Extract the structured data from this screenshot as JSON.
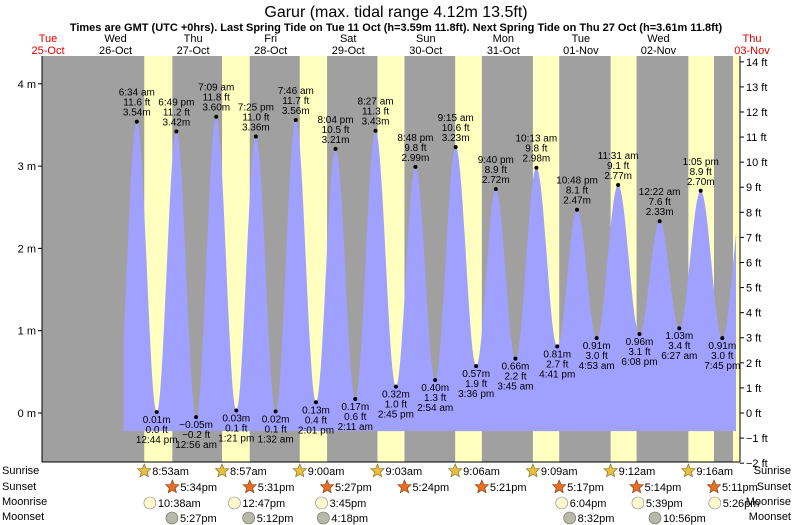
{
  "chart_data": {
    "type": "area",
    "title": "Garur (max. tidal range 4.12m 13.5ft)",
    "subtitle": "Times are GMT (UTC +0hrs). Last Spring Tide on Tue 11 Oct (h=3.59m 11.8ft). Next Spring Tide on Thu 27 Oct (h=3.61m 11.8ft)",
    "colors": {
      "tide": "#a0a0ff",
      "day": "#ffffc0",
      "night": "#a0a0a0",
      "heading": "#000000",
      "heading_red": "#e00000",
      "sun_fill": "#e8c040",
      "sunset_fill": "#e87020",
      "moon_rise": "#fffacd",
      "moon_set": "#b8b8a8"
    },
    "ylim_m": [
      -0.6,
      4.2
    ],
    "ylim_ft": [
      -2,
      14
    ],
    "x_start": "Tue 25-Oct 00:00",
    "days": [
      {
        "day": "Tue",
        "date": "25-Oct",
        "red": true
      },
      {
        "day": "Wed",
        "date": "26-Oct",
        "red": false
      },
      {
        "day": "Thu",
        "date": "27-Oct",
        "red": false
      },
      {
        "day": "Fri",
        "date": "28-Oct",
        "red": false
      },
      {
        "day": "Sat",
        "date": "29-Oct",
        "red": false
      },
      {
        "day": "Sun",
        "date": "30-Oct",
        "red": false
      },
      {
        "day": "Mon",
        "date": "31-Oct",
        "red": false
      },
      {
        "day": "Tue",
        "date": "01-Nov",
        "red": false
      },
      {
        "day": "Wed",
        "date": "02-Nov",
        "red": false
      },
      {
        "day": "Thu",
        "date": "03-Nov",
        "red": true
      }
    ],
    "m_ticks": [
      {
        "v": 0,
        "label": "0 m"
      },
      {
        "v": 1,
        "label": "1 m"
      },
      {
        "v": 2,
        "label": "2 m"
      },
      {
        "v": 3,
        "label": "3 m"
      },
      {
        "v": 4,
        "label": "4 m"
      }
    ],
    "ft_ticks": [
      {
        "v": -2,
        "label": "−2 ft"
      },
      {
        "v": -1,
        "label": "−1 ft"
      },
      {
        "v": 0,
        "label": "0 ft"
      },
      {
        "v": 1,
        "label": "1 ft"
      },
      {
        "v": 2,
        "label": "2 ft"
      },
      {
        "v": 3,
        "label": "3 ft"
      },
      {
        "v": 4,
        "label": "4 ft"
      },
      {
        "v": 5,
        "label": "5 ft"
      },
      {
        "v": 6,
        "label": "6 ft"
      },
      {
        "v": 7,
        "label": "7 ft"
      },
      {
        "v": 8,
        "label": "8 ft"
      },
      {
        "v": 9,
        "label": "9 ft"
      },
      {
        "v": 10,
        "label": "10 ft"
      },
      {
        "v": 11,
        "label": "11 ft"
      },
      {
        "v": 12,
        "label": "12 ft"
      },
      {
        "v": 13,
        "label": "13 ft"
      },
      {
        "v": 14,
        "label": "14 ft"
      }
    ],
    "daylight": [
      {
        "rise": "8:53am",
        "set": "5:34pm"
      },
      {
        "rise": "8:57am",
        "set": "5:31pm"
      },
      {
        "rise": "9:00am",
        "set": "5:27pm"
      },
      {
        "rise": "9:03am",
        "set": "5:24pm"
      },
      {
        "rise": "9:06am",
        "set": "5:21pm"
      },
      {
        "rise": "9:09am",
        "set": "5:17pm"
      },
      {
        "rise": "9:12am",
        "set": "5:14pm"
      },
      {
        "rise": "9:16am",
        "set": "5:11pm"
      }
    ],
    "series": [
      {
        "name": "High tides",
        "kind": "high",
        "points": [
          {
            "time": "6:34 am",
            "ft": "11.6 ft",
            "m": 3.54,
            "h": 30.57
          },
          {
            "time": "6:49 pm",
            "ft": "11.2 ft",
            "m": 3.42,
            "h": 42.82
          },
          {
            "time": "7:09 am",
            "ft": "11.8 ft",
            "m": 3.6,
            "h": 55.15
          },
          {
            "time": "7:25 pm",
            "ft": "11.0 ft",
            "m": 3.36,
            "h": 67.42
          },
          {
            "time": "7:46 am",
            "ft": "11.7 ft",
            "m": 3.56,
            "h": 79.77
          },
          {
            "time": "8:04 pm",
            "ft": "10.5 ft",
            "m": 3.21,
            "h": 92.07
          },
          {
            "time": "8:27 am",
            "ft": "11.3 ft",
            "m": 3.43,
            "h": 104.45
          },
          {
            "time": "8:48 pm",
            "ft": "9.8 ft",
            "m": 2.99,
            "h": 116.8
          },
          {
            "time": "9:15 am",
            "ft": "10.6 ft",
            "m": 3.23,
            "h": 129.25
          },
          {
            "time": "9:40 pm",
            "ft": "8.9 ft",
            "m": 2.72,
            "h": 141.67
          },
          {
            "time": "10:13 am",
            "ft": "9.8 ft",
            "m": 2.98,
            "h": 154.22
          },
          {
            "time": "10:48 pm",
            "ft": "8.1 ft",
            "m": 2.47,
            "h": 166.8
          },
          {
            "time": "11:31 am",
            "ft": "9.1 ft",
            "m": 2.77,
            "h": 179.52
          },
          {
            "time": "12:22 am",
            "ft": "7.6 ft",
            "m": 2.33,
            "h": 192.37
          },
          {
            "time": "1:05 pm",
            "ft": "8.9 ft",
            "m": 2.7,
            "h": 205.08
          }
        ]
      },
      {
        "name": "Low tides",
        "kind": "low",
        "points": [
          {
            "time": "12:44 pm",
            "ft": "0.0 ft",
            "m": 0.01,
            "h": 36.73
          },
          {
            "time": "12:56 am",
            "ft": "−0.2 ft",
            "m": -0.05,
            "h": 48.93
          },
          {
            "time": "1:21 pm",
            "ft": "0.1 ft",
            "m": 0.03,
            "h": 61.35
          },
          {
            "time": "1:32 am",
            "ft": "0.1 ft",
            "m": 0.02,
            "h": 73.53
          },
          {
            "time": "2:01 pm",
            "ft": "0.4 ft",
            "m": 0.13,
            "h": 86.02
          },
          {
            "time": "2:11 am",
            "ft": "0.6 ft",
            "m": 0.17,
            "h": 98.18
          },
          {
            "time": "2:45 pm",
            "ft": "1.0 ft",
            "m": 0.32,
            "h": 110.75
          },
          {
            "time": "2:54 am",
            "ft": "1.3 ft",
            "m": 0.4,
            "h": 122.9
          },
          {
            "time": "3:36 pm",
            "ft": "1.9 ft",
            "m": 0.57,
            "h": 135.6
          },
          {
            "time": "3:45 am",
            "ft": "2.2 ft",
            "m": 0.66,
            "h": 147.75
          },
          {
            "time": "4:41 pm",
            "ft": "2.7 ft",
            "m": 0.81,
            "h": 160.68
          },
          {
            "time": "4:53 am",
            "ft": "3.0 ft",
            "m": 0.91,
            "h": 172.88
          },
          {
            "time": "6:08 pm",
            "ft": "3.1 ft",
            "m": 0.96,
            "h": 186.13
          },
          {
            "time": "6:27 am",
            "ft": "3.4 ft",
            "m": 1.03,
            "h": 198.45
          },
          {
            "time": "7:45 pm",
            "ft": "3.0 ft",
            "m": 0.91,
            "h": 211.75
          }
        ]
      }
    ],
    "row_labels": {
      "sunrise": "Sunrise",
      "sunset": "Sunset",
      "moonrise": "Moonrise",
      "moonset": "Moonset"
    },
    "moon": [
      {
        "moonrise": "10:38am",
        "moonset": "5:27pm"
      },
      {
        "moonrise": "12:47pm",
        "moonset": "5:12pm"
      },
      {
        "moonrise": "3:45pm",
        "moonset": "4:18pm"
      },
      null,
      null,
      {
        "moonrise": "6:04pm",
        "moonset": "8:32pm"
      },
      {
        "moonrise": "5:39pm",
        "moonset": "10:56pm"
      },
      {
        "moonrise": "5:26pm",
        "moonset": null
      }
    ]
  }
}
